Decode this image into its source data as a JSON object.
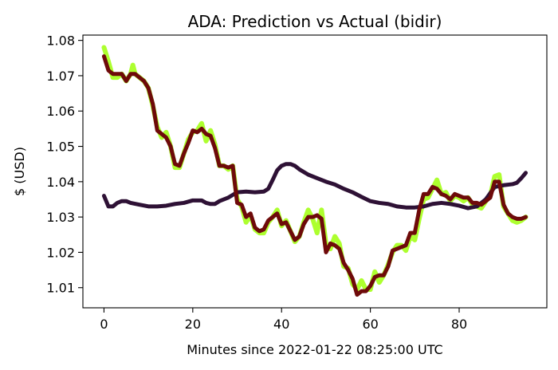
{
  "chart_data": {
    "type": "line",
    "title": "ADA: Prediction vs Actual (bidir)",
    "xlabel": "Minutes since 2022-01-22 08:25:00 UTC",
    "ylabel": "$ (USD)",
    "xlim": [
      -4.75,
      99.75
    ],
    "ylim": [
      1.0043,
      1.0815
    ],
    "xticks": [
      0,
      20,
      40,
      60,
      80
    ],
    "yticks": [
      1.01,
      1.02,
      1.03,
      1.04,
      1.05,
      1.06,
      1.07,
      1.08
    ],
    "ytick_labels": [
      "1.01",
      "1.02",
      "1.03",
      "1.04",
      "1.05",
      "1.06",
      "1.07",
      "1.08"
    ],
    "grid": false,
    "legend": "none",
    "series": [
      {
        "color": "#adff2f",
        "points": [
          [
            0,
            1.078
          ],
          [
            1,
            1.074
          ],
          [
            2,
            1.0695
          ],
          [
            3,
            1.0695
          ],
          [
            4,
            1.0705
          ],
          [
            5,
            1.0685
          ],
          [
            6,
            1.0705
          ],
          [
            6.5,
            1.073
          ],
          [
            7,
            1.0705
          ],
          [
            8,
            1.0695
          ],
          [
            9,
            1.0685
          ],
          [
            10,
            1.0665
          ],
          [
            11,
            1.0615
          ],
          [
            12,
            1.0555
          ],
          [
            13,
            1.0525
          ],
          [
            14,
            1.054
          ],
          [
            15,
            1.05
          ],
          [
            16,
            1.044
          ],
          [
            17,
            1.044
          ],
          [
            18,
            1.048
          ],
          [
            19,
            1.052
          ],
          [
            20,
            1.054
          ],
          [
            21,
            1.0545
          ],
          [
            22,
            1.0565
          ],
          [
            23,
            1.0515
          ],
          [
            24,
            1.0545
          ],
          [
            25,
            1.0505
          ],
          [
            26,
            1.0445
          ],
          [
            27,
            1.0445
          ],
          [
            28,
            1.0435
          ],
          [
            29,
            1.0445
          ],
          [
            30,
            1.035
          ],
          [
            31,
            1.033
          ],
          [
            32,
            1.0285
          ],
          [
            33,
            1.0305
          ],
          [
            34,
            1.0265
          ],
          [
            35,
            1.0255
          ],
          [
            36,
            1.0255
          ],
          [
            37,
            1.0285
          ],
          [
            38,
            1.03
          ],
          [
            39,
            1.032
          ],
          [
            40,
            1.0275
          ],
          [
            41,
            1.029
          ],
          [
            42,
            1.026
          ],
          [
            43,
            1.023
          ],
          [
            44,
            1.0245
          ],
          [
            45,
            1.0285
          ],
          [
            46,
            1.032
          ],
          [
            47,
            1.0295
          ],
          [
            48,
            1.0255
          ],
          [
            49,
            1.032
          ],
          [
            50,
            1.0225
          ],
          [
            51,
            1.021
          ],
          [
            52,
            1.0245
          ],
          [
            53,
            1.0225
          ],
          [
            54,
            1.016
          ],
          [
            55,
            1.0155
          ],
          [
            56,
            1.011
          ],
          [
            57,
            1.0095
          ],
          [
            58,
            1.012
          ],
          [
            59,
            1.0095
          ],
          [
            60,
            1.0095
          ],
          [
            61,
            1.0145
          ],
          [
            62,
            1.0115
          ],
          [
            63,
            1.0135
          ],
          [
            64,
            1.0165
          ],
          [
            65,
            1.02
          ],
          [
            66,
            1.022
          ],
          [
            67,
            1.022
          ],
          [
            68,
            1.0205
          ],
          [
            69,
            1.0245
          ],
          [
            70,
            1.0235
          ],
          [
            71,
            1.0295
          ],
          [
            72,
            1.035
          ],
          [
            73,
            1.0355
          ],
          [
            74,
            1.038
          ],
          [
            75,
            1.0405
          ],
          [
            76,
            1.0365
          ],
          [
            77,
            1.037
          ],
          [
            78,
            1.0345
          ],
          [
            79,
            1.036
          ],
          [
            80,
            1.0355
          ],
          [
            81,
            1.0345
          ],
          [
            82,
            1.0355
          ],
          [
            83,
            1.0335
          ],
          [
            84,
            1.033
          ],
          [
            85,
            1.0325
          ],
          [
            86,
            1.0345
          ],
          [
            87,
            1.036
          ],
          [
            88,
            1.0415
          ],
          [
            89,
            1.042
          ],
          [
            90,
            1.033
          ],
          [
            91,
            1.031
          ],
          [
            92,
            1.029
          ],
          [
            93,
            1.0285
          ],
          [
            94,
            1.029
          ],
          [
            95,
            1.03
          ]
        ]
      },
      {
        "color": "#2e1135",
        "points": [
          [
            0,
            1.036
          ],
          [
            1,
            1.033
          ],
          [
            2,
            1.033
          ],
          [
            3,
            1.034
          ],
          [
            4,
            1.0345
          ],
          [
            5,
            1.0345
          ],
          [
            6,
            1.034
          ],
          [
            8,
            1.0335
          ],
          [
            10,
            1.033
          ],
          [
            12,
            1.033
          ],
          [
            14,
            1.0332
          ],
          [
            16,
            1.0337
          ],
          [
            18,
            1.034
          ],
          [
            20,
            1.0347
          ],
          [
            22,
            1.0347
          ],
          [
            23,
            1.034
          ],
          [
            24,
            1.0337
          ],
          [
            25,
            1.0337
          ],
          [
            26,
            1.0345
          ],
          [
            28,
            1.0355
          ],
          [
            30,
            1.037
          ],
          [
            32,
            1.0372
          ],
          [
            34,
            1.037
          ],
          [
            36,
            1.0372
          ],
          [
            37,
            1.038
          ],
          [
            38,
            1.0405
          ],
          [
            39,
            1.0432
          ],
          [
            40,
            1.0445
          ],
          [
            41,
            1.045
          ],
          [
            42,
            1.045
          ],
          [
            43,
            1.0445
          ],
          [
            44,
            1.0435
          ],
          [
            46,
            1.042
          ],
          [
            48,
            1.041
          ],
          [
            50,
            1.04
          ],
          [
            52,
            1.0392
          ],
          [
            54,
            1.038
          ],
          [
            56,
            1.037
          ],
          [
            58,
            1.0357
          ],
          [
            60,
            1.0345
          ],
          [
            62,
            1.034
          ],
          [
            64,
            1.0337
          ],
          [
            66,
            1.033
          ],
          [
            68,
            1.0327
          ],
          [
            70,
            1.0327
          ],
          [
            72,
            1.033
          ],
          [
            74,
            1.0337
          ],
          [
            76,
            1.034
          ],
          [
            78,
            1.0337
          ],
          [
            80,
            1.0332
          ],
          [
            82,
            1.0325
          ],
          [
            84,
            1.033
          ],
          [
            86,
            1.035
          ],
          [
            88,
            1.0385
          ],
          [
            90,
            1.039
          ],
          [
            92,
            1.0393
          ],
          [
            93,
            1.0397
          ],
          [
            94,
            1.041
          ],
          [
            95,
            1.0425
          ]
        ]
      },
      {
        "color": "#6e0a0a",
        "points": [
          [
            0,
            1.0755
          ],
          [
            1,
            1.0715
          ],
          [
            2,
            1.0705
          ],
          [
            3,
            1.0705
          ],
          [
            4,
            1.0705
          ],
          [
            5,
            1.0685
          ],
          [
            6,
            1.0705
          ],
          [
            7,
            1.0705
          ],
          [
            8,
            1.0695
          ],
          [
            9,
            1.0685
          ],
          [
            10,
            1.0665
          ],
          [
            11,
            1.062
          ],
          [
            12,
            1.0545
          ],
          [
            13,
            1.0535
          ],
          [
            14,
            1.0525
          ],
          [
            15,
            1.05
          ],
          [
            16,
            1.045
          ],
          [
            17,
            1.0445
          ],
          [
            18,
            1.048
          ],
          [
            19,
            1.051
          ],
          [
            20,
            1.0545
          ],
          [
            21,
            1.054
          ],
          [
            22,
            1.055
          ],
          [
            23,
            1.0535
          ],
          [
            24,
            1.053
          ],
          [
            25,
            1.0495
          ],
          [
            26,
            1.0445
          ],
          [
            27,
            1.0445
          ],
          [
            28,
            1.044
          ],
          [
            29,
            1.0445
          ],
          [
            30,
            1.034
          ],
          [
            31,
            1.0335
          ],
          [
            32,
            1.03
          ],
          [
            33,
            1.031
          ],
          [
            34,
            1.027
          ],
          [
            35,
            1.026
          ],
          [
            36,
            1.0265
          ],
          [
            37,
            1.029
          ],
          [
            38,
            1.03
          ],
          [
            39,
            1.031
          ],
          [
            40,
            1.028
          ],
          [
            41,
            1.0285
          ],
          [
            42,
            1.026
          ],
          [
            43,
            1.0235
          ],
          [
            44,
            1.0245
          ],
          [
            45,
            1.028
          ],
          [
            46,
            1.03
          ],
          [
            47,
            1.03
          ],
          [
            48,
            1.0305
          ],
          [
            49,
            1.0295
          ],
          [
            50,
            1.02
          ],
          [
            51,
            1.0225
          ],
          [
            52,
            1.022
          ],
          [
            53,
            1.021
          ],
          [
            54,
            1.017
          ],
          [
            55,
            1.015
          ],
          [
            56,
            1.0125
          ],
          [
            57,
            1.008
          ],
          [
            58,
            1.009
          ],
          [
            59,
            1.009
          ],
          [
            60,
            1.0105
          ],
          [
            61,
            1.013
          ],
          [
            62,
            1.0135
          ],
          [
            63,
            1.0135
          ],
          [
            64,
            1.016
          ],
          [
            65,
            1.0205
          ],
          [
            66,
            1.021
          ],
          [
            67,
            1.0215
          ],
          [
            68,
            1.022
          ],
          [
            69,
            1.0255
          ],
          [
            70,
            1.0255
          ],
          [
            71,
            1.032
          ],
          [
            72,
            1.0365
          ],
          [
            73,
            1.0365
          ],
          [
            74,
            1.0385
          ],
          [
            75,
            1.038
          ],
          [
            76,
            1.0365
          ],
          [
            77,
            1.036
          ],
          [
            78,
            1.035
          ],
          [
            79,
            1.0365
          ],
          [
            80,
            1.036
          ],
          [
            81,
            1.0355
          ],
          [
            82,
            1.0355
          ],
          [
            83,
            1.034
          ],
          [
            84,
            1.034
          ],
          [
            85,
            1.0335
          ],
          [
            86,
            1.0345
          ],
          [
            87,
            1.0355
          ],
          [
            88,
            1.04
          ],
          [
            89,
            1.04
          ],
          [
            90,
            1.0335
          ],
          [
            91,
            1.031
          ],
          [
            92,
            1.03
          ],
          [
            93,
            1.0295
          ],
          [
            94,
            1.0295
          ],
          [
            95,
            1.03
          ]
        ]
      }
    ]
  }
}
